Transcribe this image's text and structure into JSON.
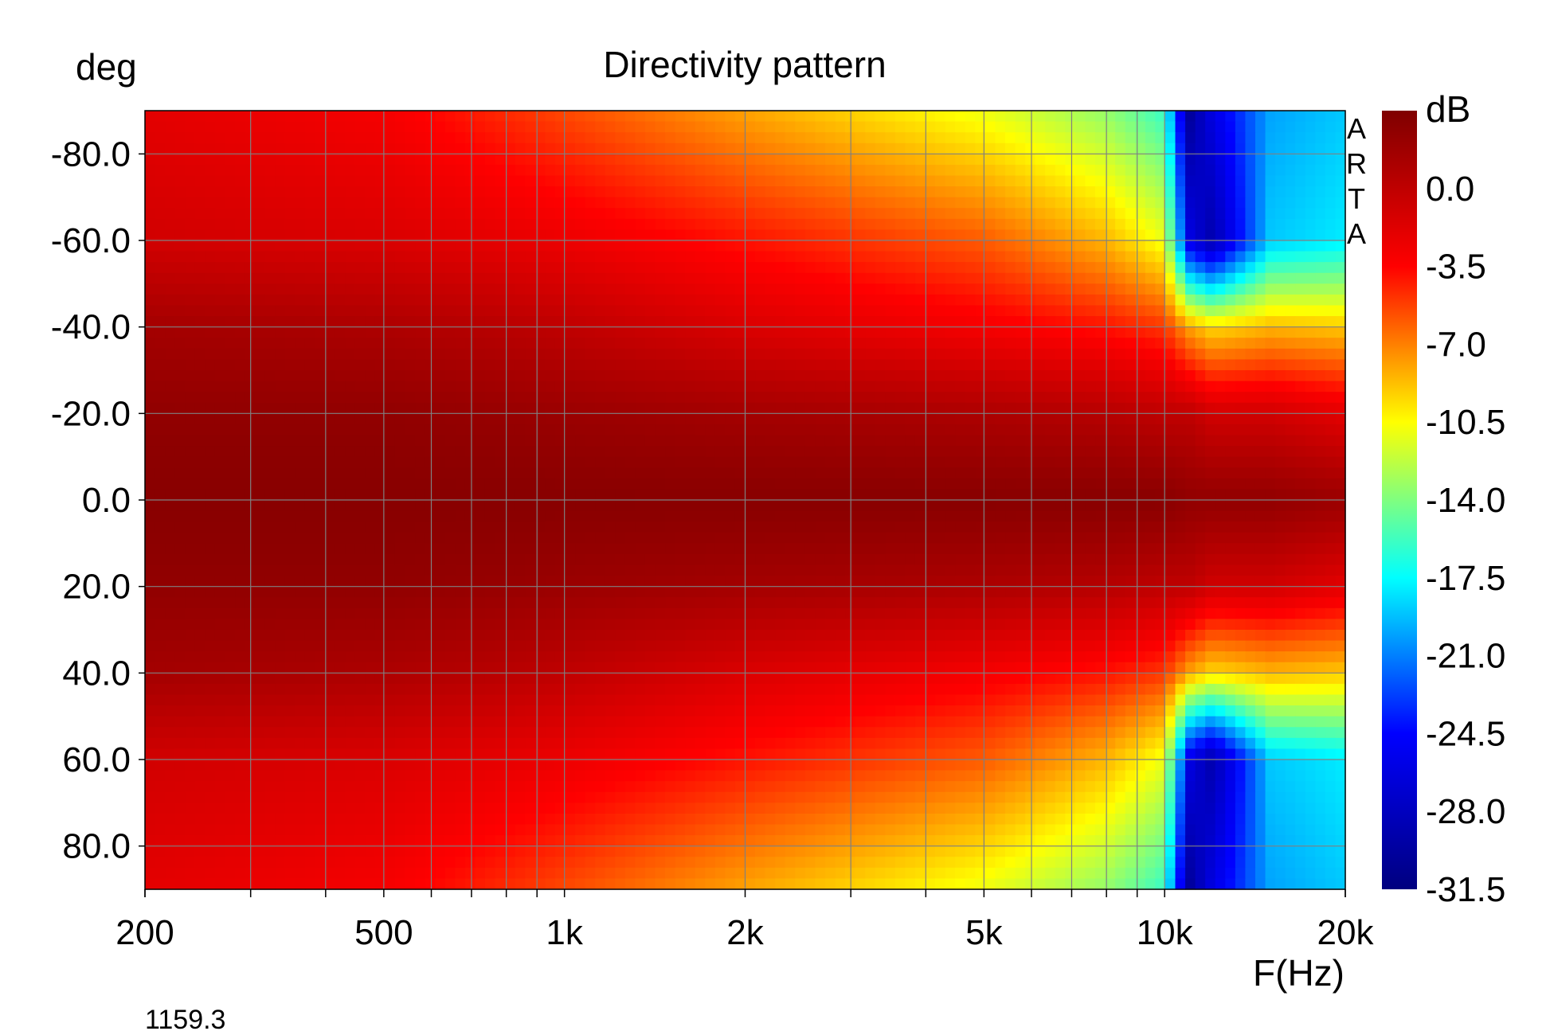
{
  "chart_data": {
    "type": "heatmap",
    "title": "Directivity pattern",
    "xlabel": "F(Hz)",
    "ylabel": "deg",
    "x_scale": "log",
    "xlim": [
      200,
      20000
    ],
    "ylim": [
      -90,
      90
    ],
    "y_reversed": true,
    "x_ticks": [
      {
        "value": 200,
        "label": "200"
      },
      {
        "value": 500,
        "label": "500"
      },
      {
        "value": 1000,
        "label": "1k"
      },
      {
        "value": 2000,
        "label": "2k"
      },
      {
        "value": 5000,
        "label": "5k"
      },
      {
        "value": 10000,
        "label": "10k"
      },
      {
        "value": 20000,
        "label": "20k"
      }
    ],
    "y_ticks": [
      {
        "value": -80,
        "label": "-80.0"
      },
      {
        "value": -60,
        "label": "-60.0"
      },
      {
        "value": -40,
        "label": "-40.0"
      },
      {
        "value": -20,
        "label": "-20.0"
      },
      {
        "value": 0,
        "label": "0.0"
      },
      {
        "value": 20,
        "label": "20.0"
      },
      {
        "value": 40,
        "label": "40.0"
      },
      {
        "value": 60,
        "label": "60.0"
      },
      {
        "value": 80,
        "label": "80.0"
      }
    ],
    "grid": true,
    "colorbar": {
      "unit": "dB",
      "range": [
        -31.5,
        3.5
      ],
      "ticks": [
        "0.0",
        "-3.5",
        "-7.0",
        "-10.5",
        "-14.0",
        "-17.5",
        "-21.0",
        "-24.5",
        "-28.0",
        "-31.5"
      ],
      "colormap": "jet",
      "colors": [
        "#00007f",
        "#0000ff",
        "#00ffff",
        "#ffff00",
        "#ff0000",
        "#7f0000"
      ]
    },
    "angles_deg": [
      -90,
      -60,
      -40,
      -20,
      0,
      20,
      40,
      60,
      90
    ],
    "freqs_hz": [
      200,
      500,
      1000,
      2000,
      5000,
      8000,
      10000,
      11000,
      12000,
      15000,
      20000
    ],
    "level_db": [
      [
        -2.0,
        -3.0,
        -5.5,
        -8.0,
        -11.0,
        -13.5,
        -16.0,
        -30.0,
        -26.0,
        -20.0,
        -19.0
      ],
      [
        -1.0,
        -1.5,
        -2.5,
        -4.0,
        -6.0,
        -8.5,
        -11.0,
        -26.0,
        -29.0,
        -19.0,
        -18.0
      ],
      [
        1.5,
        1.0,
        0.0,
        -1.5,
        -3.0,
        -4.0,
        -5.0,
        -8.0,
        -9.5,
        -8.5,
        -9.0
      ],
      [
        2.5,
        2.5,
        2.0,
        1.5,
        1.0,
        0.5,
        0.0,
        0.0,
        -1.0,
        -1.0,
        -2.0
      ],
      [
        3.0,
        3.0,
        3.0,
        3.0,
        3.0,
        3.0,
        3.0,
        2.5,
        2.5,
        2.5,
        2.0
      ],
      [
        2.5,
        2.5,
        2.0,
        1.5,
        1.0,
        0.5,
        0.0,
        0.0,
        -1.0,
        -1.0,
        -2.0
      ],
      [
        1.5,
        1.0,
        0.0,
        -1.5,
        -3.0,
        -4.0,
        -5.0,
        -8.0,
        -9.5,
        -8.5,
        -9.0
      ],
      [
        -1.0,
        -1.5,
        -2.5,
        -4.0,
        -6.0,
        -8.5,
        -11.0,
        -26.0,
        -29.0,
        -19.0,
        -18.0
      ],
      [
        -2.0,
        -3.0,
        -5.5,
        -8.0,
        -11.0,
        -13.5,
        -16.0,
        -30.0,
        -26.0,
        -20.0,
        -19.0
      ]
    ]
  },
  "watermark": "ARTA",
  "footer_value": "1159.3"
}
